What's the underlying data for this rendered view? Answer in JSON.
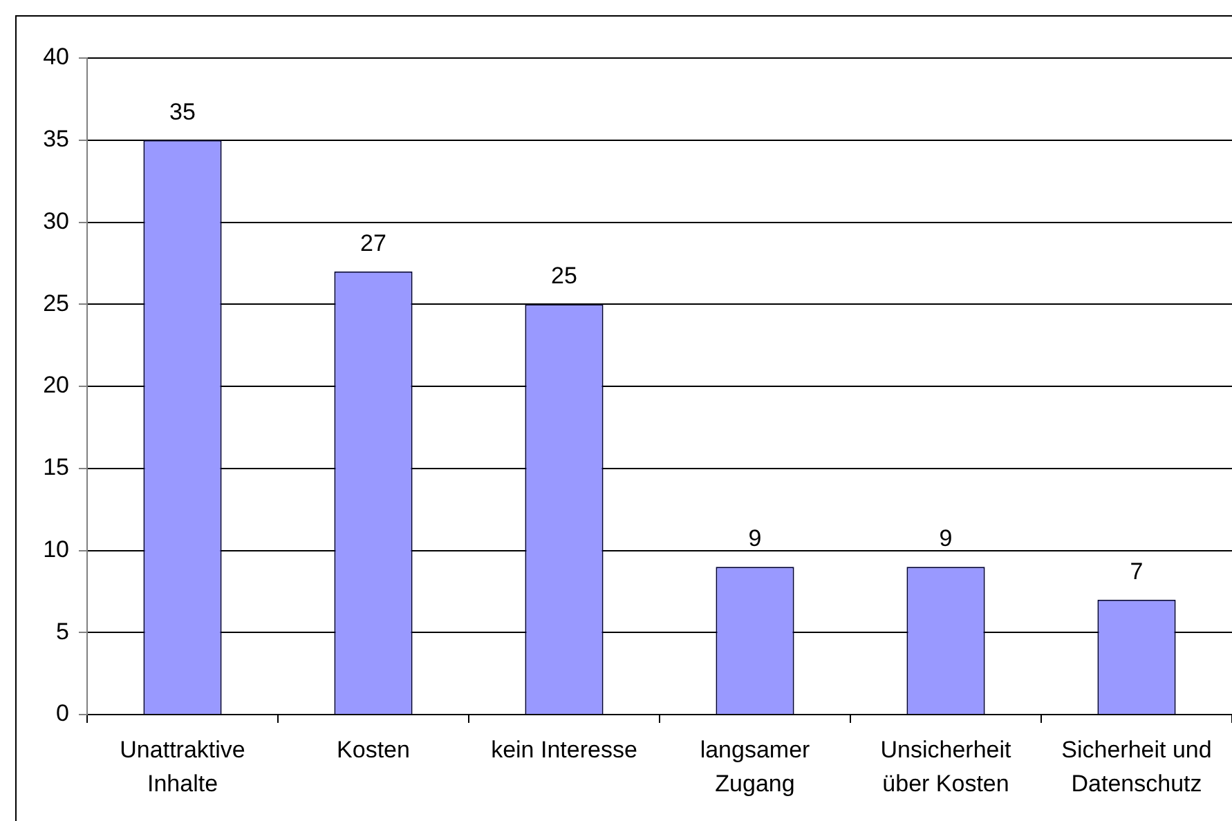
{
  "chart_data": {
    "type": "bar",
    "categories": [
      "Unattraktive Inhalte",
      "Kosten",
      "kein Interesse",
      "langsamer Zugang",
      "Unsicherheit über Kosten",
      "Sicherheit und Datenschutz"
    ],
    "values": [
      35,
      27,
      25,
      9,
      9,
      7
    ],
    "color": "#9999ff",
    "ylim": [
      0,
      40
    ],
    "yticks": [
      0,
      5,
      10,
      15,
      20,
      25,
      30,
      35,
      40
    ],
    "grid": "y",
    "data_labels": true
  }
}
